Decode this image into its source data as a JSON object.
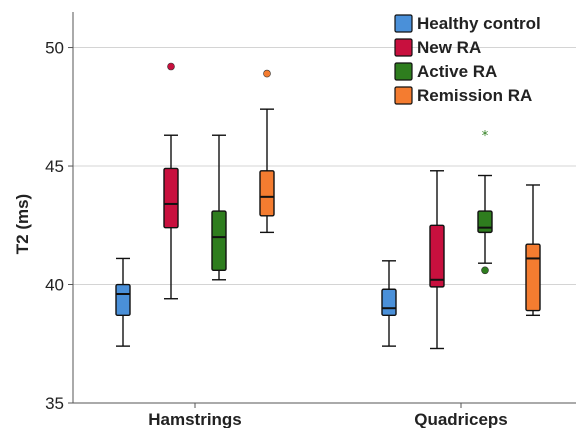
{
  "chart_data": {
    "type": "box",
    "ylabel": "T2 (ms)",
    "xlabel": "",
    "ylim": [
      35,
      51.5
    ],
    "yticks": [
      35,
      40,
      45,
      50
    ],
    "grid": true,
    "legend_position": "top-right",
    "categories": [
      "Hamstrings",
      "Quadriceps"
    ],
    "series": [
      {
        "name": "Healthy control",
        "color": "#4a90d9",
        "boxes": [
          {
            "whisker_low": 37.4,
            "q1": 38.7,
            "median": 39.6,
            "q3": 40.0,
            "whisker_high": 41.1,
            "outliers": [],
            "extremes": []
          },
          {
            "whisker_low": 37.4,
            "q1": 38.7,
            "median": 39.0,
            "q3": 39.8,
            "whisker_high": 41.0,
            "outliers": [],
            "extremes": []
          }
        ]
      },
      {
        "name": "New RA",
        "color": "#c8103e",
        "boxes": [
          {
            "whisker_low": 39.4,
            "q1": 42.4,
            "median": 43.4,
            "q3": 44.9,
            "whisker_high": 46.3,
            "outliers": [
              49.2
            ],
            "extremes": []
          },
          {
            "whisker_low": 37.3,
            "q1": 39.9,
            "median": 40.2,
            "q3": 42.5,
            "whisker_high": 44.8,
            "outliers": [],
            "extremes": []
          }
        ]
      },
      {
        "name": "Active RA",
        "color": "#2e7d1e",
        "boxes": [
          {
            "whisker_low": 40.2,
            "q1": 40.6,
            "median": 42.0,
            "q3": 43.1,
            "whisker_high": 46.3,
            "outliers": [],
            "extremes": []
          },
          {
            "whisker_low": 40.9,
            "q1": 42.2,
            "median": 42.4,
            "q3": 43.1,
            "whisker_high": 44.6,
            "outliers": [
              40.6
            ],
            "extremes": [
              46.3
            ]
          }
        ]
      },
      {
        "name": "Remission RA",
        "color": "#f47c30",
        "boxes": [
          {
            "whisker_low": 42.2,
            "q1": 42.9,
            "median": 43.7,
            "q3": 44.8,
            "whisker_high": 47.4,
            "outliers": [
              48.9
            ],
            "extremes": []
          },
          {
            "whisker_low": 38.7,
            "q1": 38.9,
            "median": 41.1,
            "q3": 41.7,
            "whisker_high": 44.2,
            "outliers": [],
            "extremes": []
          }
        ]
      }
    ]
  }
}
